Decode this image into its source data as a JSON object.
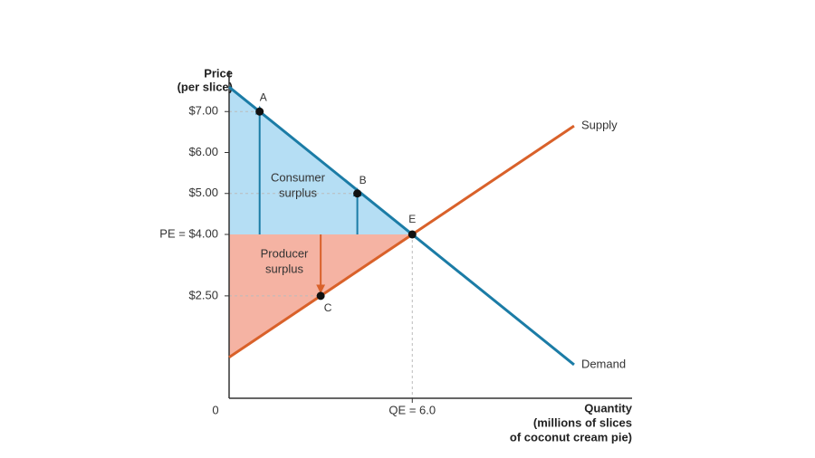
{
  "chart_data": {
    "type": "line",
    "ylabel": [
      "Price",
      "(per slice)"
    ],
    "xlabel": [
      "Quantity",
      "(millions of slices",
      "of coconut cream pie)"
    ],
    "xlim": [
      0,
      13.2
    ],
    "ylim": [
      0,
      8
    ],
    "xticks": [
      0,
      {
        "value": 6,
        "label": "QE = 6.0"
      }
    ],
    "yticks": [
      {
        "value": 7,
        "label": "$7.00"
      },
      {
        "value": 6,
        "label": "$6.00"
      },
      {
        "value": 5,
        "label": "$5.00"
      },
      {
        "value": 4,
        "label": "PE = $4.00"
      },
      {
        "value": 2.5,
        "label": "$2.50"
      }
    ],
    "series": [
      {
        "name": "Supply",
        "color": "#d9612a",
        "x": [
          0,
          11.3
        ],
        "values": [
          1,
          6.65
        ]
      },
      {
        "name": "Demand",
        "color": "#1b7ca6",
        "x": [
          0,
          11.3
        ],
        "values": [
          7.6,
          0.82
        ]
      }
    ],
    "points": [
      {
        "label": "A",
        "x": 1,
        "y": 7
      },
      {
        "label": "B",
        "x": 4.2,
        "y": 5
      },
      {
        "label": "C",
        "x": 3,
        "y": 2.5
      },
      {
        "label": "E",
        "x": 6,
        "y": 4
      }
    ],
    "annotations": [
      {
        "lines": [
          "Consumer",
          "surplus"
        ],
        "color": "#b5def4"
      },
      {
        "lines": [
          "Producer",
          "surplus"
        ],
        "color": "#f5b3a3"
      }
    ]
  }
}
